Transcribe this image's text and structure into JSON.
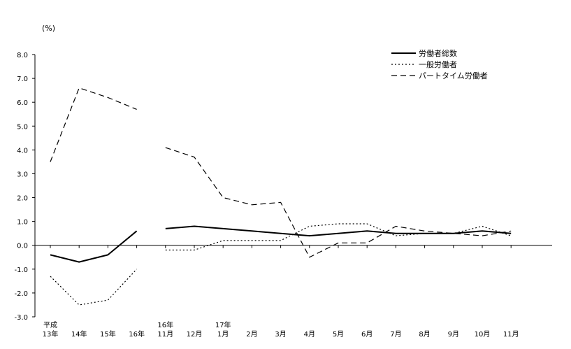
{
  "chart_data": {
    "type": "line",
    "unit_label": "(%)",
    "ylim": [
      -3.0,
      8.0
    ],
    "yticks": [
      "8.0",
      "7.0",
      "6.0",
      "5.0",
      "4.0",
      "3.0",
      "2.0",
      "1.0",
      "0.0",
      "-1.0",
      "-2.0",
      "-3.0"
    ],
    "categories": [
      {
        "line1": "平成",
        "line2": "13年"
      },
      {
        "line1": "",
        "line2": "14年"
      },
      {
        "line1": "",
        "line2": "15年"
      },
      {
        "line1": "",
        "line2": "16年"
      },
      {
        "line1": "16年",
        "line2": "11月"
      },
      {
        "line1": "",
        "line2": "12月"
      },
      {
        "line1": "17年",
        "line2": "1月"
      },
      {
        "line1": "",
        "line2": "2月"
      },
      {
        "line1": "",
        "line2": "3月"
      },
      {
        "line1": "",
        "line2": "4月"
      },
      {
        "line1": "",
        "line2": "5月"
      },
      {
        "line1": "",
        "line2": "6月"
      },
      {
        "line1": "",
        "line2": "7月"
      },
      {
        "line1": "",
        "line2": "8月"
      },
      {
        "line1": "",
        "line2": "9月"
      },
      {
        "line1": "",
        "line2": "10月"
      },
      {
        "line1": "",
        "line2": "11月"
      }
    ],
    "segments": [
      [
        0,
        3
      ],
      [
        4,
        16
      ]
    ],
    "series": [
      {
        "name": "労働者総数",
        "style": "solid",
        "values": [
          -0.4,
          -0.7,
          -0.4,
          0.6,
          0.7,
          0.8,
          0.7,
          0.6,
          0.5,
          0.4,
          0.5,
          0.6,
          0.5,
          0.5,
          0.5,
          0.6,
          0.5
        ]
      },
      {
        "name": "一般労働者",
        "style": "dotted",
        "values": [
          -1.3,
          -2.5,
          -2.3,
          -1.0,
          -0.2,
          -0.2,
          0.2,
          0.2,
          0.2,
          0.8,
          0.9,
          0.9,
          0.4,
          0.5,
          0.5,
          0.8,
          0.4
        ]
      },
      {
        "name": "パートタイム労働者",
        "style": "dashed",
        "values": [
          3.5,
          6.6,
          6.2,
          5.7,
          4.1,
          3.7,
          2.0,
          1.7,
          1.8,
          -0.5,
          0.1,
          0.1,
          0.8,
          0.6,
          0.5,
          0.4,
          0.6
        ]
      }
    ],
    "legend_position": "top-right",
    "grid": false
  }
}
